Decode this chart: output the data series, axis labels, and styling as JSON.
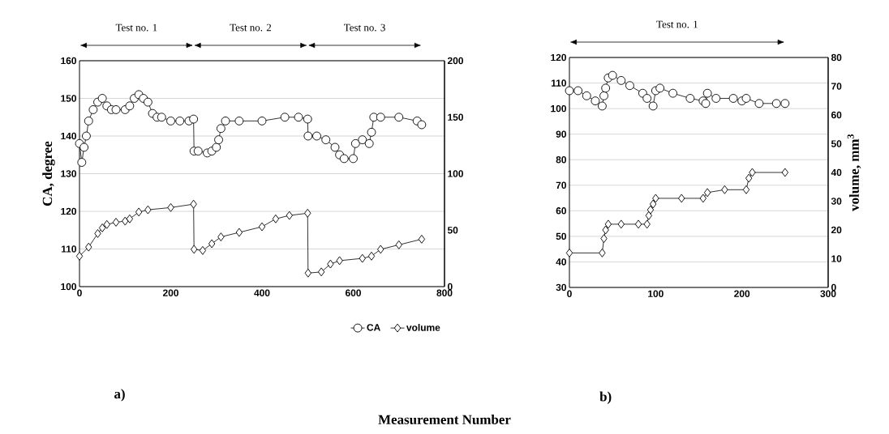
{
  "chart_data": [
    {
      "type": "line",
      "xlabel": "Measurement Number",
      "ylabel": "CA, degree",
      "xlim": [
        0,
        800
      ],
      "xticks": [
        0,
        200,
        400,
        600,
        800
      ],
      "ylim": [
        100,
        160
      ],
      "yticks": [
        100,
        110,
        120,
        130,
        140,
        150,
        160
      ],
      "y2lim": [
        0,
        200
      ],
      "y2ticks": [
        0,
        50,
        100,
        150,
        200
      ],
      "grid": "y",
      "legend": "bottom",
      "series": [
        {
          "name": "CA",
          "color": "#000000",
          "marker": "circle",
          "axis": "y",
          "x": [
            0,
            5,
            10,
            15,
            20,
            30,
            40,
            50,
            60,
            70,
            80,
            100,
            110,
            120,
            130,
            140,
            150,
            160,
            170,
            180,
            200,
            220,
            240,
            250,
            251,
            260,
            280,
            290,
            300,
            305,
            310,
            320,
            350,
            400,
            450,
            480,
            500,
            501,
            520,
            540,
            560,
            570,
            580,
            600,
            605,
            620,
            635,
            640,
            645,
            660,
            700,
            740,
            750
          ],
          "values": [
            138,
            133,
            137,
            140,
            144,
            147,
            149,
            150,
            148,
            147,
            147,
            147,
            148,
            150,
            151,
            150,
            149,
            146,
            145,
            145,
            144,
            144,
            144,
            144.5,
            136,
            136,
            135.5,
            136,
            137,
            139,
            142,
            144,
            144,
            144,
            145,
            145,
            144.5,
            140,
            140,
            139,
            137,
            135,
            134,
            134,
            138,
            139,
            138,
            141,
            145,
            145,
            145,
            144,
            143
          ]
        },
        {
          "name": "volume",
          "color": "#000000",
          "marker": "diamond",
          "axis": "y2",
          "x": [
            0,
            20,
            40,
            50,
            60,
            80,
            100,
            110,
            130,
            150,
            200,
            250,
            251,
            270,
            290,
            310,
            350,
            400,
            430,
            460,
            500,
            501,
            530,
            550,
            570,
            620,
            640,
            660,
            700,
            750
          ],
          "values": [
            27,
            35,
            47,
            52,
            55,
            57,
            58,
            60,
            66,
            68,
            70,
            73,
            33,
            32,
            38,
            44,
            48,
            53,
            60,
            63,
            65,
            12,
            13,
            20,
            23,
            25,
            27,
            33,
            37,
            42
          ]
        }
      ],
      "annotations": [
        "Test no. 1",
        "Test no. 2",
        "Test no. 3",
        "a)"
      ]
    },
    {
      "type": "line",
      "y2label": "volume, mm$^{3}$",
      "xlim": [
        0,
        300
      ],
      "xticks": [
        0,
        100,
        200,
        300
      ],
      "ylim": [
        30,
        120
      ],
      "yticks": [
        30,
        40,
        50,
        60,
        70,
        80,
        90,
        100,
        110,
        120
      ],
      "y2lim": [
        0,
        80
      ],
      "y2ticks": [
        0,
        10,
        20,
        30,
        40,
        50,
        60,
        70,
        80
      ],
      "grid": "y",
      "series": [
        {
          "color": "#000000",
          "marker": "circle",
          "axis": "y",
          "x": [
            0,
            10,
            20,
            30,
            38,
            40,
            42,
            45,
            50,
            60,
            70,
            85,
            90,
            97,
            100,
            105,
            120,
            140,
            155,
            158,
            160,
            170,
            190,
            200,
            205,
            220,
            240,
            250
          ],
          "values": [
            107,
            107,
            105,
            103,
            101,
            105,
            108,
            112,
            113,
            111,
            109,
            106,
            104,
            101,
            107,
            108,
            106,
            104,
            103,
            102,
            106,
            104,
            104,
            103,
            104,
            102,
            102,
            102
          ]
        },
        {
          "color": "#000000",
          "marker": "diamond",
          "axis": "y2",
          "x": [
            0,
            38,
            40,
            42,
            45,
            60,
            80,
            90,
            92,
            94,
            97,
            100,
            130,
            155,
            160,
            180,
            205,
            208,
            212,
            250
          ],
          "values": [
            12,
            12,
            17,
            20,
            22,
            22,
            22,
            22,
            25,
            27,
            29,
            31,
            31,
            31,
            33,
            34,
            34,
            38,
            40,
            40
          ]
        }
      ],
      "annotations": [
        "Test no. 1",
        "b)"
      ]
    }
  ]
}
